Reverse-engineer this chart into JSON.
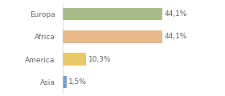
{
  "categories": [
    "Europa",
    "Africa",
    "America",
    "Asia"
  ],
  "values": [
    44.1,
    44.1,
    10.3,
    1.5
  ],
  "labels": [
    "44,1%",
    "44,1%",
    "10,3%",
    "1,5%"
  ],
  "bar_colors": [
    "#a8bc8a",
    "#e8b98a",
    "#e8c96a",
    "#7a9fd4"
  ],
  "background_color": "#ffffff",
  "xlim": [
    0,
    60
  ],
  "bar_height": 0.55,
  "label_fontsize": 6.5,
  "category_fontsize": 6.5,
  "figsize": [
    2.8,
    1.2
  ],
  "dpi": 100
}
